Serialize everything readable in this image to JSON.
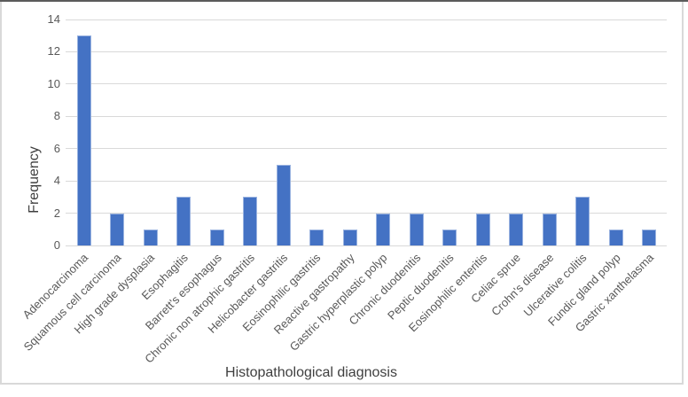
{
  "chart_data": {
    "type": "bar",
    "title": "",
    "xlabel": "Histopathological diagnosis",
    "ylabel": "Frequency",
    "categories": [
      "Adenocarcinoma",
      "Squamous cell carcinoma",
      "High grade dysplasia",
      "Esophagitis",
      "Barrett's esophagus",
      "Chronic non atrophic gastritis",
      "Helicobacter gastritis",
      "Eosinophilic gastritis",
      "Reactive gastropathy",
      "Gastric hyperplastic polyp",
      "Chronic duodenitis",
      "Peptic duodenitis",
      "Eosinophilic enteritis",
      "Celiac sprue",
      "Crohn's disease",
      "Ulcerative colitis",
      "Fundic gland polyp",
      "Gastric xanthelasma"
    ],
    "values": [
      13,
      2,
      1,
      3,
      1,
      3,
      5,
      1,
      1,
      2,
      2,
      1,
      2,
      2,
      2,
      3,
      1,
      1
    ],
    "ylim": [
      0,
      14
    ],
    "ytick_step": 2,
    "yticks": [
      0,
      2,
      4,
      6,
      8,
      10,
      12,
      14
    ],
    "grid": "horizontal",
    "legend": "none",
    "x_label_rotation_deg": 45,
    "colors": {
      "bar_fill": "#4472C4",
      "bar_edge": "#9AB3E0",
      "gridline": "#D9D9D9",
      "tick_label": "#595959",
      "axis_title": "#3F3F3F",
      "frame_border": "#D9D9D9",
      "window_top_edge": "#5B5B5B",
      "background": "#FFFFFF"
    }
  }
}
